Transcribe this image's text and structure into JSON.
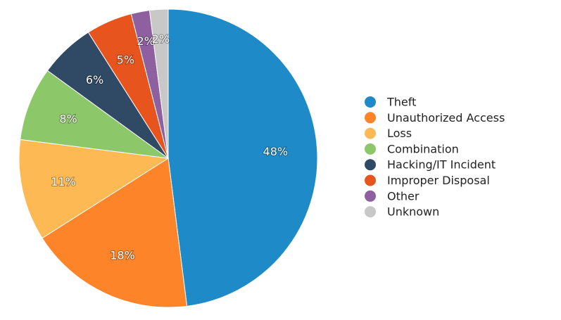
{
  "chart_data": {
    "type": "pie",
    "categories": [
      "Theft",
      "Unauthorized Access",
      "Loss",
      "Combination",
      "Hacking/IT Incident",
      "Improper Disposal",
      "Other",
      "Unknown"
    ],
    "values": [
      48,
      18,
      11,
      8,
      6,
      5,
      2,
      2
    ],
    "labels": [
      "48%",
      "18%",
      "11%",
      "8%",
      "6%",
      "5%",
      "2%",
      "2%"
    ],
    "colors": [
      "#1f8ac8",
      "#fd8428",
      "#fdb954",
      "#8cc86a",
      "#304a66",
      "#e8541e",
      "#8e60a0",
      "#c8c8c8"
    ],
    "title": "",
    "legend_placement": "right"
  }
}
